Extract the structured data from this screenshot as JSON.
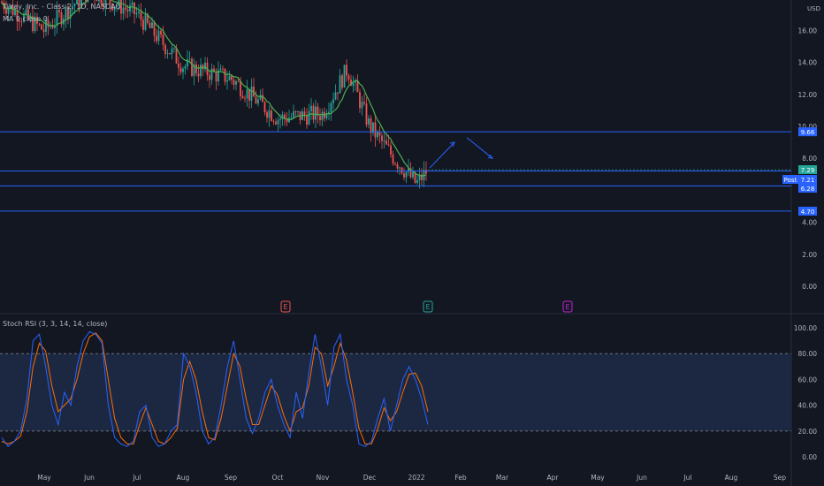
{
  "header": {
    "title": "Tilray, Inc. - Class 2, 1D, NASDAQ",
    "ma_label": "MA 9 close 0",
    "currency": "USD"
  },
  "indicator": {
    "label": "Stoch RSI (3, 3, 14, 14, close)"
  },
  "colors": {
    "background": "#131722",
    "up": "#26a69a",
    "down": "#ef5350",
    "ma": "#4caf50",
    "hline": "#2962ff",
    "k_line": "#2962ff",
    "d_line": "#ff6d00",
    "band": "#1e2a45"
  },
  "price_axis": {
    "ticks": [
      "16.00",
      "14.00",
      "12.00",
      "10.00",
      "8.00",
      "4.00",
      "2.00",
      "0.00"
    ],
    "badges": [
      {
        "text": "9.66",
        "value": 9.66,
        "color": "#2962ff"
      },
      {
        "text": "7.29",
        "value": 7.29,
        "color": "#26a69a"
      },
      {
        "text": "7.21",
        "value": 7.21,
        "color": "#2962ff"
      },
      {
        "text": "6.28",
        "value": 6.28,
        "color": "#2962ff"
      },
      {
        "text": "4.70",
        "value": 4.7,
        "color": "#2962ff"
      }
    ],
    "post_label": "Post"
  },
  "rsi_axis": {
    "ticks": [
      "100.00",
      "80.00",
      "60.00",
      "40.00",
      "20.00",
      "0.00"
    ]
  },
  "time_axis": {
    "labels": [
      "May",
      "Jun",
      "Jul",
      "Aug",
      "Sep",
      "Oct",
      "Nov",
      "Dec",
      "2022",
      "Feb",
      "Mar",
      "Apr",
      "May",
      "Jun",
      "Jul",
      "Aug",
      "Sep"
    ]
  },
  "events": [
    {
      "letter": "E",
      "color": "#ef5350"
    },
    {
      "letter": "E",
      "color": "#26a69a"
    },
    {
      "letter": "E",
      "color": "#c026d3"
    }
  ],
  "chart_data": [
    {
      "type": "candlestick",
      "ylim": [
        -1,
        18
      ],
      "hlines": [
        9.66,
        7.21,
        6.28,
        4.7
      ],
      "trend_points": [
        {
          "month": "Jan 2022",
          "price": 7.4
        },
        {
          "month": "Jan 2022",
          "price": 9.0
        },
        {
          "month": "Feb 2022",
          "price": 9.3
        },
        {
          "month": "Feb 2022",
          "price": 8.0
        }
      ],
      "key_prices": [
        {
          "date": "Apr 2021",
          "price": 17.8
        },
        {
          "date": "May 2021",
          "price": 16.0
        },
        {
          "date": "Jun 2021",
          "price": 18.5
        },
        {
          "date": "Jul 2021",
          "price": 17.0
        },
        {
          "date": "Aug 2021",
          "price": 13.8
        },
        {
          "date": "Sep 2021",
          "price": 13.0
        },
        {
          "date": "Oct 2021",
          "price": 10.5
        },
        {
          "date": "Nov 2021",
          "price": 10.8
        },
        {
          "date": "Nov 2021",
          "price": 13.6
        },
        {
          "date": "Dec 2021",
          "price": 10.0
        },
        {
          "date": "Dec 2021",
          "price": 8.0
        },
        {
          "date": "Jan 2022",
          "price": 6.4
        },
        {
          "date": "Jan 2022",
          "price": 7.29
        }
      ]
    },
    {
      "type": "line",
      "name": "Stoch RSI (3, 3, 14, 14, close)",
      "ylim": [
        -5,
        105
      ],
      "bands": [
        20,
        80
      ],
      "k_values": [
        15,
        8,
        12,
        20,
        45,
        90,
        95,
        70,
        40,
        25,
        50,
        40,
        70,
        90,
        97,
        95,
        88,
        40,
        15,
        10,
        8,
        12,
        35,
        40,
        15,
        8,
        10,
        20,
        25,
        80,
        70,
        50,
        20,
        10,
        15,
        40,
        70,
        90,
        60,
        30,
        18,
        30,
        50,
        60,
        40,
        25,
        15,
        50,
        30,
        65,
        95,
        70,
        40,
        85,
        95,
        60,
        40,
        10,
        8,
        12,
        30,
        45,
        20,
        40,
        60,
        70,
        60,
        45,
        25
      ],
      "d_values": [
        12,
        10,
        12,
        16,
        35,
        70,
        88,
        82,
        55,
        35,
        40,
        45,
        60,
        80,
        93,
        96,
        90,
        60,
        30,
        15,
        10,
        10,
        25,
        38,
        25,
        12,
        10,
        15,
        22,
        60,
        74,
        60,
        35,
        15,
        13,
        30,
        55,
        80,
        70,
        45,
        25,
        25,
        40,
        55,
        48,
        32,
        20,
        35,
        38,
        55,
        85,
        80,
        55,
        70,
        88,
        75,
        50,
        22,
        10,
        10,
        22,
        38,
        28,
        35,
        50,
        64,
        65,
        55,
        35
      ]
    }
  ]
}
